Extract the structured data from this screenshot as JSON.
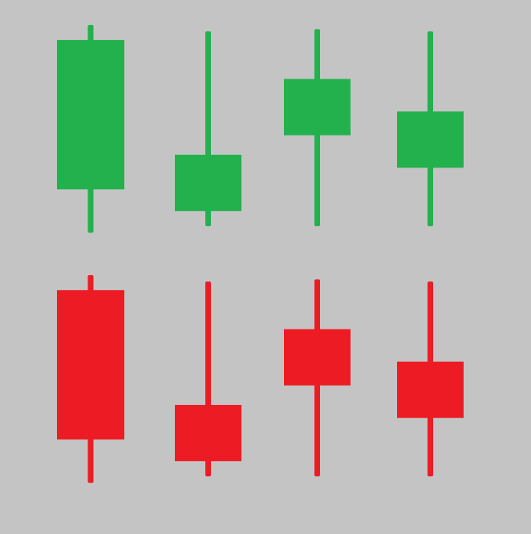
{
  "colors": {
    "background": "#c4c4c4",
    "bullish": "#22b14c",
    "bearish": "#ed1c24"
  },
  "rows": [
    {
      "name": "bullish-row",
      "color_key": "bullish",
      "candles": [
        {
          "name": "candle-long-body",
          "high": 100,
          "body_top": 93,
          "body_bottom": 24,
          "low": 4
        },
        {
          "name": "candle-low-body",
          "high": 97,
          "body_top": 40,
          "body_bottom": 14,
          "low": 7
        },
        {
          "name": "candle-high-body",
          "high": 98,
          "body_top": 75,
          "body_bottom": 49,
          "low": 7
        },
        {
          "name": "candle-mid-body",
          "high": 97,
          "body_top": 60,
          "body_bottom": 34,
          "low": 7
        }
      ]
    },
    {
      "name": "bearish-row",
      "color_key": "bearish",
      "candles": [
        {
          "name": "candle-long-body",
          "high": 100,
          "body_top": 93,
          "body_bottom": 24,
          "low": 4
        },
        {
          "name": "candle-low-body",
          "high": 97,
          "body_top": 40,
          "body_bottom": 14,
          "low": 7
        },
        {
          "name": "candle-high-body",
          "high": 98,
          "body_top": 75,
          "body_bottom": 49,
          "low": 7
        },
        {
          "name": "candle-mid-body",
          "high": 97,
          "body_top": 60,
          "body_bottom": 34,
          "low": 7
        }
      ]
    }
  ]
}
